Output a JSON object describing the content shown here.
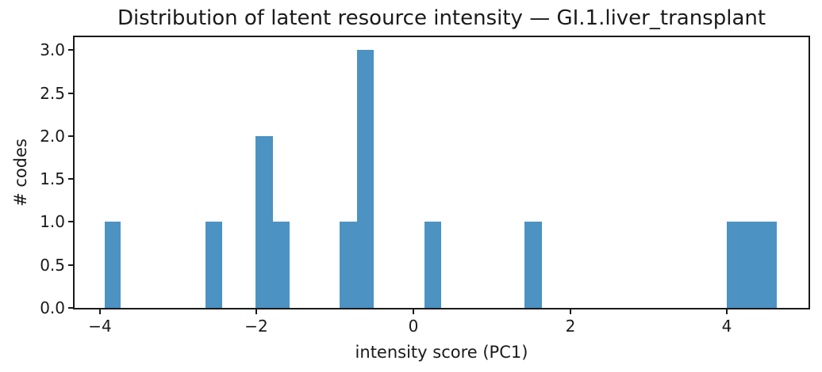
{
  "chart_data": {
    "type": "bar",
    "subtype": "histogram",
    "title": "Distribution of latent resource intensity — GI.1.liver_transplant",
    "xlabel": "intensity score (PC1)",
    "ylabel": "# codes",
    "xlim": [
      -4.32,
      5.04
    ],
    "ylim": [
      0,
      3.15
    ],
    "grid": false,
    "legend_position": "none",
    "x_ticks": {
      "values": [
        -4,
        -2,
        0,
        2,
        4
      ],
      "labels": [
        "−4",
        "−2",
        "0",
        "2",
        "4"
      ]
    },
    "y_ticks": {
      "values": [
        0,
        0.5,
        1,
        1.5,
        2,
        2.5,
        3
      ],
      "labels": [
        "0.0",
        "0.5",
        "1.0",
        "1.5",
        "2.0",
        "2.5",
        "3.0"
      ]
    },
    "bars": [
      {
        "x0": -3.94,
        "x1": -3.73,
        "count": 1
      },
      {
        "x0": -2.65,
        "x1": -2.44,
        "count": 1
      },
      {
        "x0": -2.01,
        "x1": -1.79,
        "count": 2
      },
      {
        "x0": -1.79,
        "x1": -1.58,
        "count": 1
      },
      {
        "x0": -0.94,
        "x1": -0.72,
        "count": 1
      },
      {
        "x0": -0.72,
        "x1": -0.51,
        "count": 3
      },
      {
        "x0": 0.14,
        "x1": 0.35,
        "count": 1
      },
      {
        "x0": 1.42,
        "x1": 1.64,
        "count": 1
      },
      {
        "x0": 4.0,
        "x1": 4.21,
        "count": 1
      },
      {
        "x0": 4.21,
        "x1": 4.43,
        "count": 1
      },
      {
        "x0": 4.43,
        "x1": 4.64,
        "count": 1
      }
    ],
    "total_codes": 14,
    "colors": {
      "bar": "#4c92c3",
      "axis": "#1a1a1a",
      "text": "#1a1a1a",
      "background": "#ffffff"
    }
  }
}
